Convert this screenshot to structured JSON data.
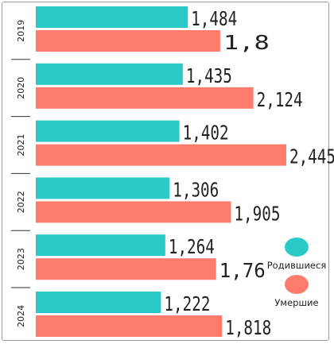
{
  "chart_data": {
    "type": "bar",
    "orientation": "horizontal",
    "categories": [
      "2019",
      "2020",
      "2021",
      "2022",
      "2023",
      "2024"
    ],
    "series": [
      {
        "name": "Родившиеся",
        "color": "#2ccac6",
        "values": [
          1.484,
          1.435,
          1.402,
          1.306,
          1.264,
          1.222
        ],
        "labels": [
          "1,484",
          "1,435",
          "1,402",
          "1,306",
          "1,264",
          "1,222"
        ]
      },
      {
        "name": "Умершие",
        "color": "#fc7b6c",
        "values": [
          1.8,
          2.124,
          2.445,
          1.905,
          1.76,
          1.818
        ],
        "labels": [
          "1,8",
          "2,124",
          "2,445",
          "1,905",
          "1,76",
          "1,818"
        ]
      }
    ],
    "xlim": [
      0,
      2.445
    ],
    "grid": false,
    "legend_position": "right"
  }
}
